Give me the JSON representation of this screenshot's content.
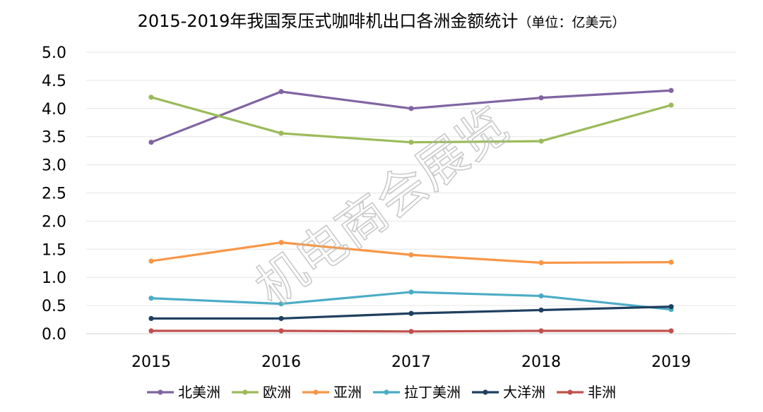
{
  "chart_data": {
    "type": "line",
    "title": "2015-2019年我国泵压式咖啡机出口各洲金额统计",
    "title_unit": "（单位：亿美元）",
    "categories": [
      "2015",
      "2016",
      "2017",
      "2018",
      "2019"
    ],
    "ylim": [
      0,
      5.0
    ],
    "yticks": [
      "0.0",
      "0.5",
      "1.0",
      "1.5",
      "2.0",
      "2.5",
      "3.0",
      "3.5",
      "4.0",
      "4.5",
      "5.0"
    ],
    "grid": true,
    "legend_position": "bottom",
    "series": [
      {
        "name": "北美洲",
        "color": "#8064A2",
        "values": [
          3.4,
          4.3,
          4.0,
          4.19,
          4.32
        ]
      },
      {
        "name": "欧洲",
        "color": "#9BBB59",
        "values": [
          4.2,
          3.56,
          3.4,
          3.42,
          4.06
        ]
      },
      {
        "name": "亚洲",
        "color": "#F79646",
        "values": [
          1.29,
          1.62,
          1.4,
          1.26,
          1.27
        ]
      },
      {
        "name": "拉丁美洲",
        "color": "#4BACC6",
        "values": [
          0.63,
          0.53,
          0.74,
          0.67,
          0.43
        ]
      },
      {
        "name": "大洋洲",
        "color": "#1F3F60",
        "values": [
          0.27,
          0.27,
          0.36,
          0.42,
          0.48
        ]
      },
      {
        "name": "非洲",
        "color": "#C0504D",
        "values": [
          0.05,
          0.05,
          0.04,
          0.05,
          0.05
        ]
      }
    ]
  },
  "watermark": "机电商会展览"
}
